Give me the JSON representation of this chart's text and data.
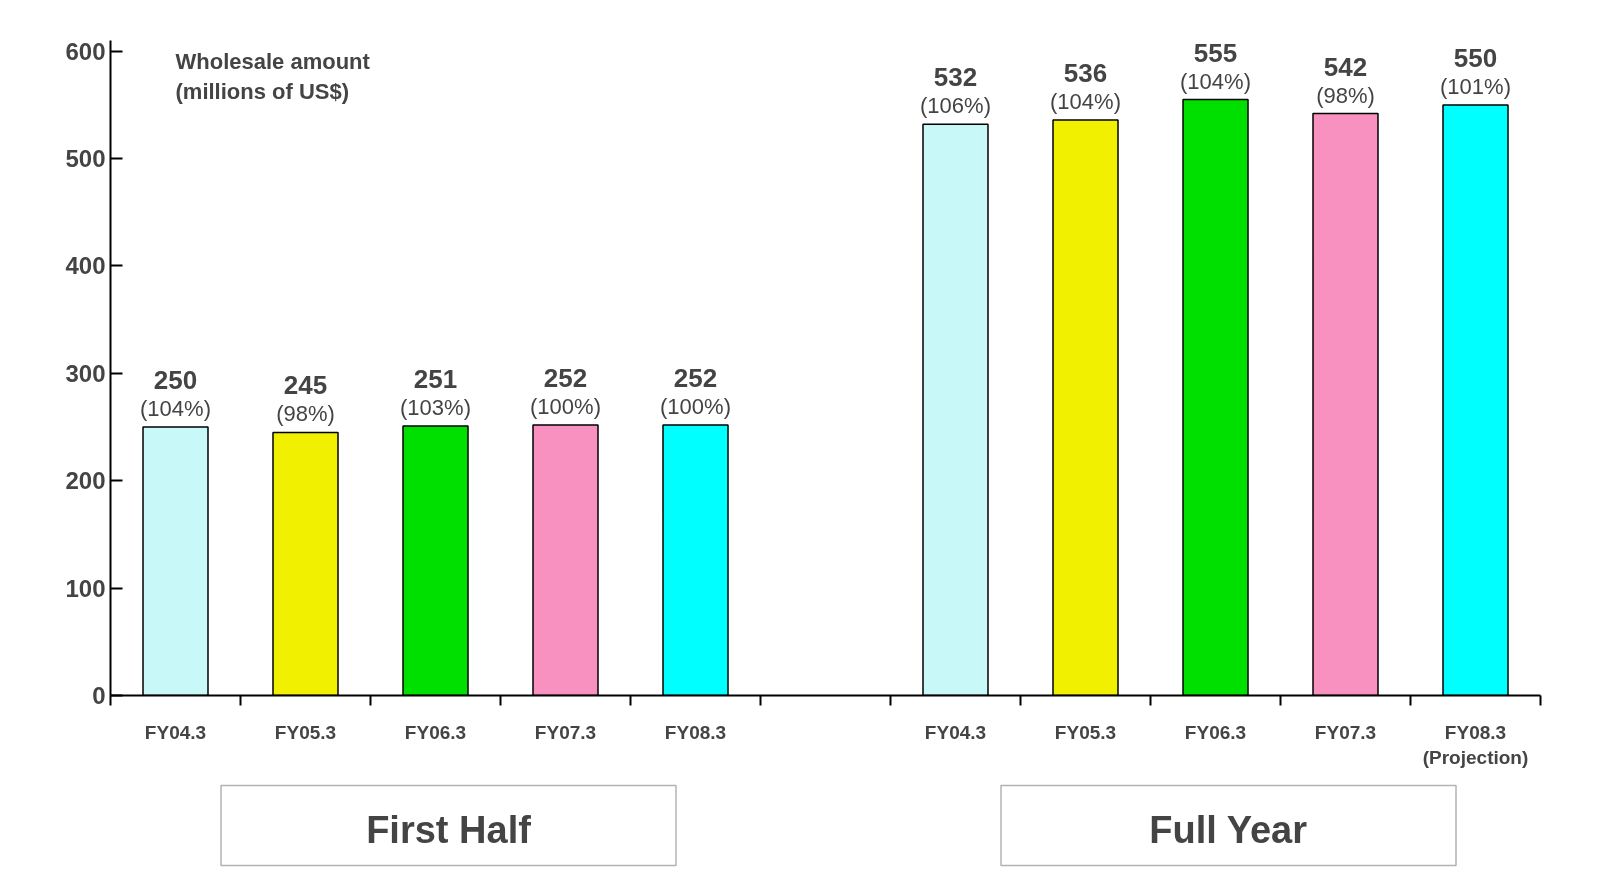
{
  "chart_data": {
    "type": "bar",
    "ylabel": "Wholesale amount\n(millions of US$)",
    "categories": [
      "FY04.3",
      "FY05.3",
      "FY06.3",
      "FY07.3",
      "FY08.3",
      null,
      "FY04.3",
      "FY05.3",
      "FY06.3",
      "FY07.3",
      "FY08.3\n(Projection)"
    ],
    "values": [
      250,
      245,
      251,
      252,
      252,
      null,
      532,
      536,
      555,
      542,
      550
    ],
    "colors": [
      "#c8f8f8",
      "#f0f000",
      "#00e000",
      "#f890c0",
      "#00ffff",
      "#ffffff",
      "#c8f8f8",
      "#f0f000",
      "#00e000",
      "#f890c0",
      "#00ffff"
    ],
    "value_labels": [
      "250\n(104%)",
      "245\n(98%)",
      "251\n(103%)",
      "252\n(100%)",
      "252\n(100%)",
      null,
      "532\n(106%)",
      "536\n(104%)",
      "555\n(104%)",
      "542\n(98%)",
      "550\n(101%)"
    ],
    "ylim": [
      0,
      610
    ],
    "yticks": [
      0,
      100,
      200,
      300,
      400,
      500,
      600
    ],
    "grid": false,
    "annotations": [
      "First Half",
      "Full Year"
    ]
  }
}
